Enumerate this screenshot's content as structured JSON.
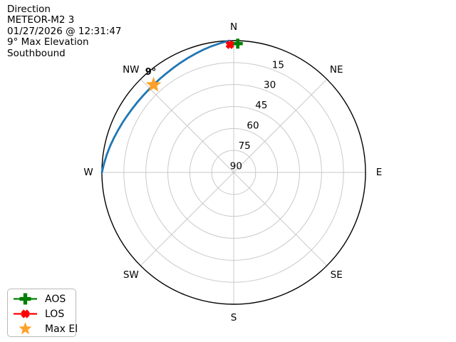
{
  "header": {
    "lines": [
      "Direction",
      "METEOR-M2 3",
      "01/27/2026 @ 12:31:47",
      "9° Max Elevation",
      "Southbound"
    ]
  },
  "legend": {
    "items": [
      {
        "label": "AOS",
        "shape": "plus",
        "color": "#008000",
        "line": true
      },
      {
        "label": "LOS",
        "shape": "x",
        "color": "#ff0000",
        "line": true
      },
      {
        "label": "Max El",
        "shape": "star",
        "color": "#ffa028",
        "line": false
      }
    ]
  },
  "chart_data": {
    "type": "polar_track",
    "title": "Direction",
    "satellite": "METEOR-M2 3",
    "timestamp": "01/27/2026 @ 12:31:47",
    "max_elevation_deg": 9,
    "direction": "Southbound",
    "compass": [
      {
        "label": "N",
        "az": 0
      },
      {
        "label": "NE",
        "az": 45
      },
      {
        "label": "E",
        "az": 90
      },
      {
        "label": "SE",
        "az": 135
      },
      {
        "label": "S",
        "az": 180
      },
      {
        "label": "SW",
        "az": 225
      },
      {
        "label": "W",
        "az": 270
      },
      {
        "label": "NW",
        "az": 315
      }
    ],
    "radial_axis": {
      "unit": "elevation_deg",
      "outer_value": 0,
      "center_value": 90,
      "ticks": [
        15,
        30,
        45,
        60,
        75,
        90
      ],
      "tick_angle_deg": 22.5
    },
    "grid_color": "#c9c9c9",
    "outline_color": "#000000",
    "track": {
      "color": "#1f77b4",
      "points": [
        [
          358,
          0
        ],
        [
          354,
          1.3
        ],
        [
          350,
          2.5
        ],
        [
          346,
          3.7
        ],
        [
          342,
          4.9
        ],
        [
          338,
          5.9
        ],
        [
          334,
          6.8
        ],
        [
          330,
          7.6
        ],
        [
          326,
          8.2
        ],
        [
          322,
          8.6
        ],
        [
          318,
          8.9
        ],
        [
          314,
          9.0
        ],
        [
          310,
          8.9
        ],
        [
          306,
          8.6
        ],
        [
          302,
          8.2
        ],
        [
          298,
          7.6
        ],
        [
          294,
          6.8
        ],
        [
          290,
          5.9
        ],
        [
          286,
          4.9
        ],
        [
          282,
          3.7
        ],
        [
          278,
          2.5
        ],
        [
          274,
          1.3
        ],
        [
          270,
          0
        ]
      ]
    },
    "markers": [
      {
        "id": "aos",
        "label": "AOS",
        "shape": "plus",
        "color": "#008000",
        "az": 1.8,
        "el": 2.0,
        "size": 14
      },
      {
        "id": "los",
        "label": "LOS",
        "shape": "x",
        "color": "#ff0000",
        "az": 358.3,
        "el": 2.8,
        "size": 16
      },
      {
        "id": "max_el",
        "label": "Max El",
        "shape": "star",
        "color": "#ffa028",
        "az": 317.5,
        "el": 9.0,
        "size": 23
      }
    ],
    "annotation": {
      "text": "9°",
      "attached_to": "max_el"
    }
  }
}
